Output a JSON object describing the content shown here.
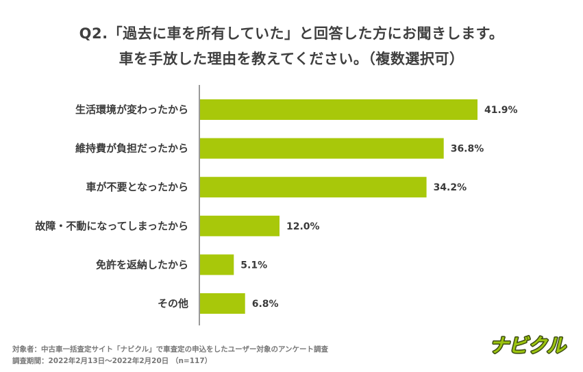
{
  "title_line1": "Q2.「過去に車を所有していた」と回答した方にお聞きします。",
  "title_line2": "車を手放した理由を教えてください。（複数選択可）",
  "footer_line1": "対象者：中古車一括査定サイト「ナビクル」で車査定の申込をしたユーザー対象のアンケート調査",
  "footer_line2": "調査期間：2022年2月13日〜2022年2月20日 （n=117）",
  "logo_text": "ナビクル",
  "colors": {
    "bar": "#a8c80a",
    "axis": "#999999",
    "logo_green": "#9cc40f",
    "logo_outline": "#3a4a12"
  },
  "chart_data": {
    "type": "bar",
    "orientation": "horizontal",
    "categories": [
      "生活環境が変わったから",
      "維持費が負担だったから",
      "車が不要となったから",
      "故障・不動になってしまったから",
      "免許を返納したから",
      "その他"
    ],
    "values": [
      41.9,
      36.8,
      34.2,
      12.0,
      5.1,
      6.8
    ],
    "value_labels": [
      "41.9%",
      "36.8%",
      "34.2%",
      "12.0%",
      "5.1%",
      "6.8%"
    ],
    "xlim": [
      0,
      41.9
    ]
  }
}
